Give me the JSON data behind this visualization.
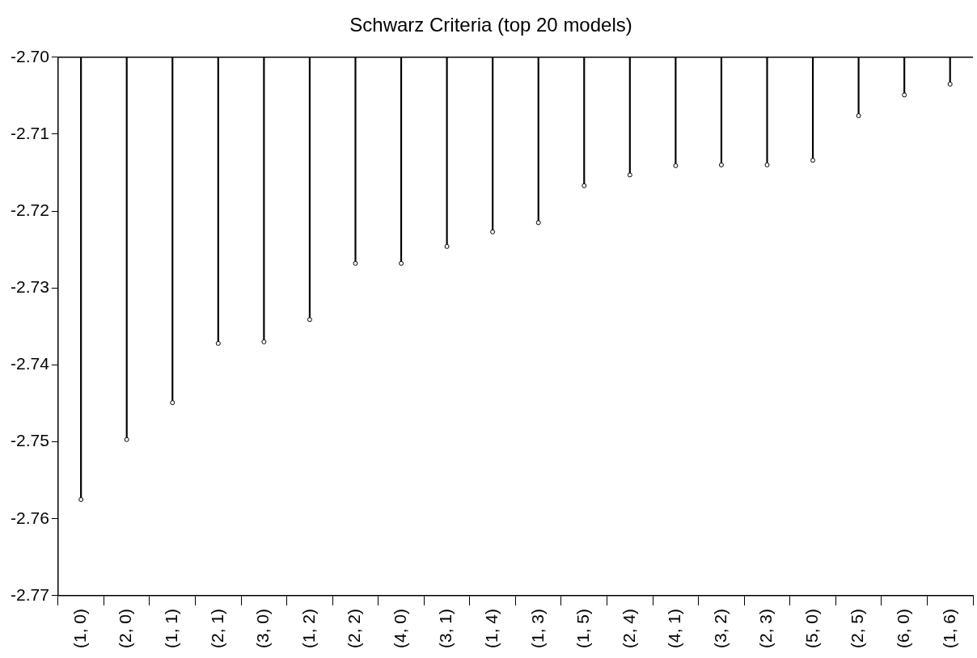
{
  "chart_data": {
    "type": "lollipop",
    "title": "Schwarz Criteria (top 20 models)",
    "categories": [
      "(1, 0)",
      "(2, 0)",
      "(1, 1)",
      "(2, 1)",
      "(3, 0)",
      "(1, 2)",
      "(2, 2)",
      "(4, 0)",
      "(3, 1)",
      "(1, 4)",
      "(1, 3)",
      "(1, 5)",
      "(2, 4)",
      "(4, 1)",
      "(3, 2)",
      "(2, 3)",
      "(5, 0)",
      "(2, 5)",
      "(6, 0)",
      "(1, 6)"
    ],
    "values": [
      -2.7575,
      -2.7497,
      -2.7449,
      -2.7372,
      -2.737,
      -2.7341,
      -2.7268,
      -2.7268,
      -2.7246,
      -2.7227,
      -2.7215,
      -2.7167,
      -2.7153,
      -2.7141,
      -2.714,
      -2.714,
      -2.7134,
      -2.7076,
      -2.7049,
      -2.7035
    ],
    "color": "#000000",
    "marker": "circle",
    "grid": false,
    "legend": false,
    "ylim": [
      -2.77,
      -2.7
    ],
    "yticks": [
      {
        "value": -2.77,
        "label": "-2.77"
      },
      -2.76,
      -2.75,
      -2.74,
      -2.73,
      -2.72,
      -2.71,
      {
        "value": -2.7,
        "label": "-2.70"
      }
    ]
  }
}
